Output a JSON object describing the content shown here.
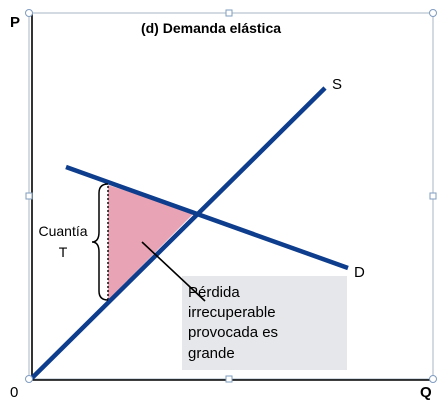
{
  "diagram": {
    "title": "(d) Demanda  elástica",
    "axis_y_label": "P",
    "axis_x_label": "Q",
    "origin_label": "0",
    "supply_label": "S",
    "demand_label": "D",
    "tax_label_line1": "Cuantía",
    "tax_label_line2": "T",
    "deadweight_line1": "Pérdida",
    "deadweight_line2": "irrecuperable",
    "deadweight_line3": "provocada es",
    "deadweight_line4": "grande"
  },
  "colors": {
    "curve": "#0d3d8c",
    "deadweight_fill": "#e8a3b4",
    "note_bg": "#e6e7ea",
    "handle": "#7f9dbf"
  }
}
